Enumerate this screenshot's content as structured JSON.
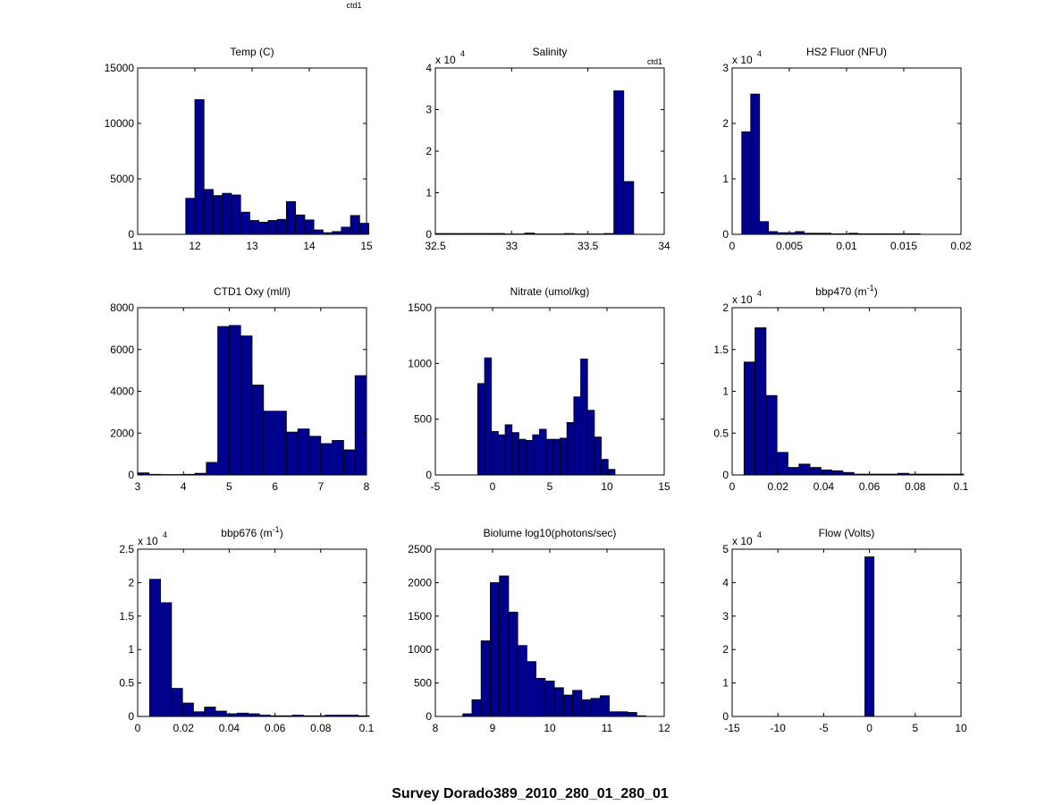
{
  "figure": {
    "title": "Survey Dorado389_2010_280_01_280_01",
    "top_tag": "ctd1"
  },
  "colors": {
    "bar": "#00008f",
    "edge": "#000000",
    "background": "#ffffff"
  },
  "chart_data": [
    {
      "type": "bar",
      "title": "Temp (C)",
      "tag": "",
      "exponent": "",
      "xlim": [
        11,
        15
      ],
      "ylim": [
        0,
        15000
      ],
      "xticks": [
        11,
        12,
        13,
        14,
        15
      ],
      "yticks": [
        0,
        5000,
        10000,
        15000
      ],
      "xtick_labels": [
        "11",
        "12",
        "13",
        "14",
        "15"
      ],
      "ytick_labels": [
        "0",
        "5000",
        "10000",
        "15000"
      ],
      "bins": [
        11.84,
        12.0,
        12.16,
        12.32,
        12.48,
        12.64,
        12.8,
        12.96,
        13.12,
        13.28,
        13.44,
        13.6,
        13.76,
        13.92,
        14.08,
        14.24,
        14.4,
        14.56,
        14.72,
        14.88
      ],
      "values": [
        3250,
        12150,
        4050,
        3500,
        3700,
        3550,
        2000,
        1250,
        1100,
        1250,
        1350,
        2950,
        1750,
        1300,
        400,
        150,
        250,
        650,
        1700,
        1000
      ]
    },
    {
      "type": "bar",
      "title": "Salinity",
      "tag": "ctd1",
      "exponent": "4",
      "xlim": [
        32.5,
        34
      ],
      "ylim": [
        0,
        4
      ],
      "xticks": [
        32.5,
        33,
        33.5,
        34
      ],
      "yticks": [
        0,
        1,
        2,
        3,
        4
      ],
      "xtick_labels": [
        "32.5",
        "33",
        "33.5",
        "34"
      ],
      "ytick_labels": [
        "0",
        "1",
        "2",
        "3",
        "4"
      ],
      "bins": [
        32.5,
        32.565,
        32.63,
        32.695,
        32.76,
        32.825,
        32.89,
        32.955,
        33.02,
        33.085,
        33.15,
        33.215,
        33.28,
        33.345,
        33.41,
        33.475,
        33.54,
        33.605,
        33.67,
        33.735
      ],
      "values": [
        0.02,
        0.02,
        0.02,
        0.02,
        0.02,
        0.02,
        0.02,
        0.01,
        0.01,
        0.03,
        0.01,
        0.01,
        0.01,
        0.02,
        0.01,
        0.01,
        0.01,
        0.02,
        3.45,
        1.27
      ]
    },
    {
      "type": "bar",
      "title": "HS2 Fluor (NFU)",
      "tag": "",
      "exponent": "4",
      "xlim": [
        0,
        0.02
      ],
      "ylim": [
        0,
        3
      ],
      "xticks": [
        0,
        0.005,
        0.01,
        0.015,
        0.02
      ],
      "yticks": [
        0,
        1,
        2,
        3
      ],
      "xtick_labels": [
        "0",
        "0.005",
        "0.01",
        "0.015",
        "0.02"
      ],
      "ytick_labels": [
        "0",
        "1",
        "2",
        "3"
      ],
      "bins": [
        0.00084,
        0.00162,
        0.0024,
        0.00318,
        0.00396,
        0.00474,
        0.00552,
        0.0063,
        0.00708,
        0.00786,
        0.00864,
        0.00942,
        0.0102,
        0.01098,
        0.01176,
        0.01254,
        0.01332,
        0.0141,
        0.01488,
        0.01566
      ],
      "values": [
        1.85,
        2.53,
        0.23,
        0.05,
        0.03,
        0.03,
        0.05,
        0.02,
        0.02,
        0.02,
        0.01,
        0.01,
        0.02,
        0.01,
        0.01,
        0.01,
        0.01,
        0.01,
        0.01,
        0.01
      ]
    },
    {
      "type": "bar",
      "title": "CTD1 Oxy (ml/l)",
      "tag": "",
      "exponent": "",
      "xlim": [
        3,
        8
      ],
      "ylim": [
        0,
        8000
      ],
      "xticks": [
        3,
        4,
        5,
        6,
        7,
        8
      ],
      "yticks": [
        0,
        2000,
        4000,
        6000,
        8000
      ],
      "xtick_labels": [
        "3",
        "4",
        "5",
        "6",
        "7",
        "8"
      ],
      "ytick_labels": [
        "0",
        "2000",
        "4000",
        "6000",
        "8000"
      ],
      "bins": [
        3.0,
        3.25,
        3.5,
        3.75,
        4.0,
        4.25,
        4.5,
        4.75,
        5.0,
        5.25,
        5.5,
        5.75,
        6.0,
        6.25,
        6.5,
        6.75,
        7.0,
        7.25,
        7.5,
        7.75
      ],
      "values": [
        100,
        30,
        20,
        20,
        30,
        80,
        600,
        7100,
        7150,
        6650,
        4300,
        3050,
        3050,
        2050,
        2200,
        1850,
        1500,
        1650,
        1200,
        4750
      ]
    },
    {
      "type": "bar",
      "title": "Nitrate (umol/kg)",
      "tag": "",
      "exponent": "",
      "xlim": [
        -5,
        15
      ],
      "ylim": [
        0,
        1500
      ],
      "xticks": [
        -5,
        0,
        5,
        10,
        15
      ],
      "yticks": [
        0,
        500,
        1000,
        1500
      ],
      "xtick_labels": [
        "-5",
        "0",
        "5",
        "10",
        "15"
      ],
      "ytick_labels": [
        "0",
        "500",
        "1000",
        "1500"
      ],
      "bins": [
        -1.3,
        -0.7,
        -0.1,
        0.5,
        1.1,
        1.7,
        2.3,
        2.9,
        3.5,
        4.1,
        4.7,
        5.3,
        5.9,
        6.5,
        7.1,
        7.7,
        8.3,
        8.9,
        9.5,
        10.1
      ],
      "values": [
        820,
        1050,
        390,
        360,
        450,
        380,
        320,
        310,
        360,
        410,
        320,
        320,
        330,
        470,
        700,
        1040,
        580,
        340,
        140,
        50
      ]
    },
    {
      "type": "bar",
      "title": "bbp470 (m",
      "title_sup": "-1",
      "title_end": ")",
      "tag": "",
      "exponent": "4",
      "xlim": [
        0,
        0.1
      ],
      "ylim": [
        0,
        2
      ],
      "xticks": [
        0,
        0.02,
        0.04,
        0.06,
        0.08,
        0.1
      ],
      "yticks": [
        0,
        0.5,
        1,
        1.5,
        2
      ],
      "xtick_labels": [
        "0",
        "0.02",
        "0.04",
        "0.06",
        "0.08",
        "0.1"
      ],
      "ytick_labels": [
        "0",
        "0.5",
        "1",
        "1.5",
        "2"
      ],
      "bins": [
        0.0052,
        0.01,
        0.0148,
        0.0196,
        0.0244,
        0.0292,
        0.034,
        0.0388,
        0.0436,
        0.0484,
        0.0532,
        0.058,
        0.0628,
        0.0676,
        0.0724,
        0.0772,
        0.082,
        0.0868,
        0.0916,
        0.0964
      ],
      "values": [
        1.35,
        1.76,
        0.95,
        0.27,
        0.09,
        0.13,
        0.09,
        0.06,
        0.05,
        0.03,
        0.01,
        0.01,
        0.01,
        0.01,
        0.02,
        0.01,
        0.01,
        0.01,
        0.01,
        0.01
      ]
    },
    {
      "type": "bar",
      "title": "bbp676 (m",
      "title_sup": "-1",
      "title_end": ")",
      "tag": "",
      "exponent": "4",
      "xlim": [
        0,
        0.1
      ],
      "ylim": [
        0,
        2.5
      ],
      "xticks": [
        0,
        0.02,
        0.04,
        0.06,
        0.08,
        0.1
      ],
      "yticks": [
        0,
        0.5,
        1,
        1.5,
        2,
        2.5
      ],
      "xtick_labels": [
        "0",
        "0.02",
        "0.04",
        "0.06",
        "0.08",
        "0.1"
      ],
      "ytick_labels": [
        "0",
        "0.5",
        "1",
        "1.5",
        "2",
        "2.5"
      ],
      "bins": [
        0.0052,
        0.01,
        0.0148,
        0.0196,
        0.0244,
        0.0292,
        0.034,
        0.0388,
        0.0436,
        0.0484,
        0.0532,
        0.058,
        0.0628,
        0.0676,
        0.0724,
        0.0772,
        0.082,
        0.0868,
        0.0916,
        0.0964
      ],
      "values": [
        2.05,
        1.7,
        0.42,
        0.2,
        0.07,
        0.14,
        0.08,
        0.04,
        0.05,
        0.04,
        0.02,
        0.01,
        0.01,
        0.02,
        0.01,
        0.01,
        0.02,
        0.02,
        0.02,
        0.01
      ]
    },
    {
      "type": "bar",
      "title": "Biolume log10(photons/sec)",
      "tag": "",
      "exponent": "",
      "xlim": [
        8,
        12
      ],
      "ylim": [
        0,
        2500
      ],
      "xticks": [
        8,
        9,
        10,
        11,
        12
      ],
      "yticks": [
        0,
        500,
        1000,
        1500,
        2000,
        2500
      ],
      "xtick_labels": [
        "8",
        "9",
        "10",
        "11",
        "12"
      ],
      "ytick_labels": [
        "0",
        "500",
        "1000",
        "1500",
        "2000",
        "2500"
      ],
      "bins": [
        8.48,
        8.64,
        8.8,
        8.96,
        9.12,
        9.28,
        9.44,
        9.6,
        9.76,
        9.92,
        10.08,
        10.24,
        10.4,
        10.56,
        10.72,
        10.88,
        11.04,
        11.2,
        11.36,
        11.52
      ],
      "values": [
        40,
        250,
        1130,
        2000,
        2100,
        1560,
        1060,
        820,
        570,
        530,
        430,
        320,
        390,
        250,
        270,
        310,
        70,
        70,
        60,
        10
      ]
    },
    {
      "type": "bar",
      "title": "Flow (Volts)",
      "tag": "",
      "exponent": "4",
      "xlim": [
        -15,
        10
      ],
      "ylim": [
        0,
        5
      ],
      "xticks": [
        -15,
        -10,
        -5,
        0,
        5,
        10
      ],
      "yticks": [
        0,
        1,
        2,
        3,
        4,
        5
      ],
      "xtick_labels": [
        "-15",
        "-10",
        "-5",
        "0",
        "5",
        "10"
      ],
      "ytick_labels": [
        "0",
        "1",
        "2",
        "3",
        "4",
        "5"
      ],
      "bins": [
        -0.5
      ],
      "bin_width": 1.0,
      "values": [
        4.77
      ]
    }
  ]
}
